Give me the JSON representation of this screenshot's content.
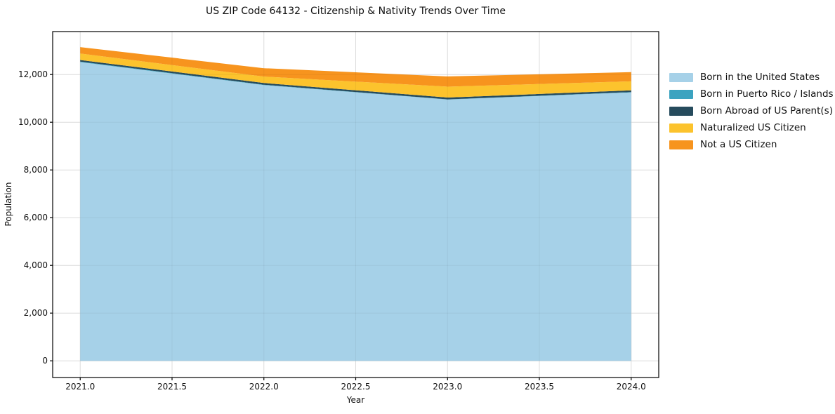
{
  "chart_data": {
    "type": "area",
    "stacked": true,
    "title": "US ZIP Code 64132 - Citizenship & Nativity Trends Over Time",
    "xlabel": "Year",
    "ylabel": "Population",
    "x": [
      2021,
      2022,
      2023,
      2024
    ],
    "series": [
      {
        "name": "Born in the United States",
        "color": "#a6d1e8",
        "values": [
          12520,
          11560,
          10950,
          11250
        ]
      },
      {
        "name": "Born in Puerto Rico / Islands",
        "color": "#3ba3c0",
        "values": [
          20,
          15,
          10,
          15
        ]
      },
      {
        "name": "Born Abroad of US Parent(s)",
        "color": "#264b5d",
        "values": [
          70,
          70,
          75,
          70
        ]
      },
      {
        "name": "Naturalized US Citizen",
        "color": "#fcc32d",
        "values": [
          270,
          270,
          455,
          380
        ]
      },
      {
        "name": "Not a US Citizen",
        "color": "#f7941e",
        "values": [
          270,
          350,
          430,
          385
        ]
      }
    ],
    "totals": [
      13150,
      12265,
      11920,
      12100
    ],
    "xlim": [
      2020.85,
      2024.15
    ],
    "ylim": [
      -700,
      13800
    ],
    "xticks": [
      {
        "value": 2021.0,
        "label": "2021.0"
      },
      {
        "value": 2021.5,
        "label": "2021.5"
      },
      {
        "value": 2022.0,
        "label": "2022.0"
      },
      {
        "value": 2022.5,
        "label": "2022.5"
      },
      {
        "value": 2023.0,
        "label": "2023.0"
      },
      {
        "value": 2023.5,
        "label": "2023.5"
      },
      {
        "value": 2024.0,
        "label": "2024.0"
      }
    ],
    "yticks": [
      {
        "value": 0,
        "label": "0"
      },
      {
        "value": 2000,
        "label": "2,000"
      },
      {
        "value": 4000,
        "label": "4,000"
      },
      {
        "value": 6000,
        "label": "6,000"
      },
      {
        "value": 8000,
        "label": "8,000"
      },
      {
        "value": 10000,
        "label": "10,000"
      },
      {
        "value": 12000,
        "label": "12,000"
      }
    ],
    "grid": true,
    "grid_color": "#e8e8e8",
    "axis_color": "#000000",
    "legend_position": "right",
    "legend_frame": false
  }
}
